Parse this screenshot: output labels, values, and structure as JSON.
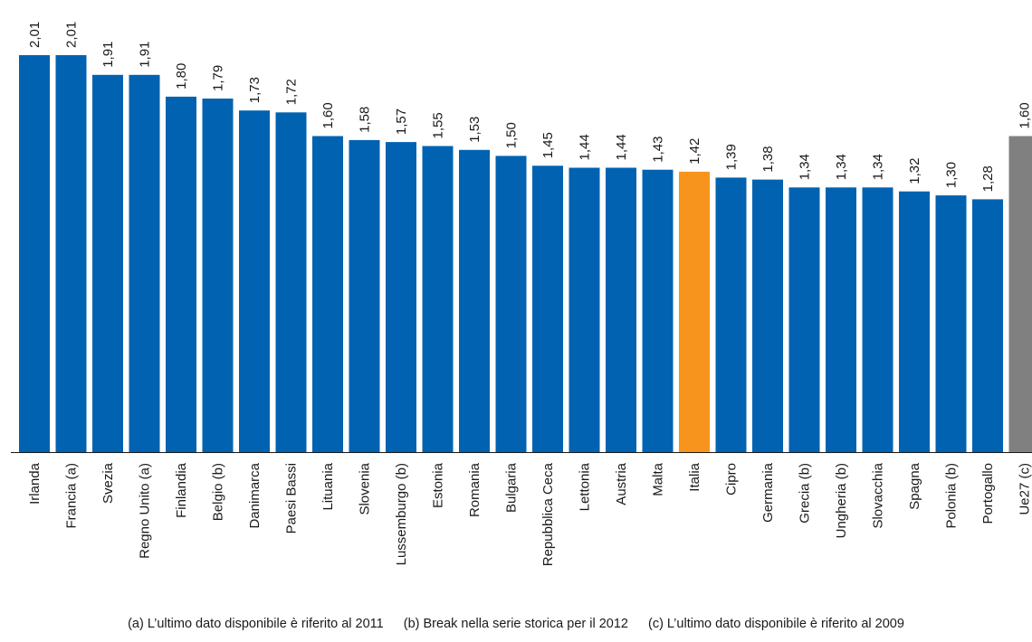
{
  "colors": {
    "default": "#0062b1",
    "highlight": "#f7941d",
    "aggregate": "#808080"
  },
  "chart_data": {
    "type": "bar",
    "title": "",
    "xlabel": "",
    "ylabel": "",
    "ylim": [
      0,
      2.01
    ],
    "grid": false,
    "categories": [
      "Irlanda",
      "Francia (a)",
      "Svezia",
      "Regno Unito (a)",
      "Finlandia",
      "Belgio (b)",
      "Danimarca",
      "Paesi Bassi",
      "Lituania",
      "Slovenia",
      "Lussemburgo (b)",
      "Estonia",
      "Romania",
      "Bulgaria",
      "Repubblica Ceca",
      "Lettonia",
      "Austria",
      "Malta",
      "Italia",
      "Cipro",
      "Germania",
      "Grecia (b)",
      "Ungheria (b)",
      "Slovacchia",
      "Spagna",
      "Polonia (b)",
      "Portogallo",
      "Ue27 (c)"
    ],
    "values": [
      2.01,
      2.01,
      1.91,
      1.91,
      1.8,
      1.79,
      1.73,
      1.72,
      1.6,
      1.58,
      1.57,
      1.55,
      1.53,
      1.5,
      1.45,
      1.44,
      1.44,
      1.43,
      1.42,
      1.39,
      1.38,
      1.34,
      1.34,
      1.34,
      1.32,
      1.3,
      1.28,
      1.6
    ],
    "value_labels": [
      "2,01",
      "2,01",
      "1,91",
      "1,91",
      "1,80",
      "1,79",
      "1,73",
      "1,72",
      "1,60",
      "1,58",
      "1,57",
      "1,55",
      "1,53",
      "1,50",
      "1,45",
      "1,44",
      "1,44",
      "1,43",
      "1,42",
      "1,39",
      "1,38",
      "1,34",
      "1,34",
      "1,34",
      "1,32",
      "1,30",
      "1,28",
      "1,60"
    ],
    "highlight": [
      "Italia"
    ],
    "aggregate": [
      "Ue27 (c)"
    ]
  },
  "footnotes": [
    "(a) L’ultimo dato disponibile è riferito al 2011",
    "(b) Break nella serie storica per il 2012",
    "(c) L’ultimo dato disponibile è riferito al 2009"
  ]
}
